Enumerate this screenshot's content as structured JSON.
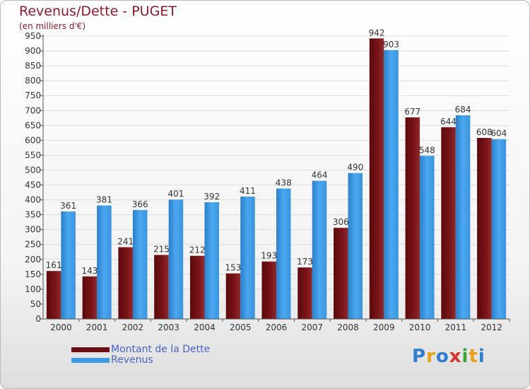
{
  "title": "Revenus/Dette - PUGET",
  "subtitle": "(en milliers d'€)",
  "logo": {
    "letters": [
      "P",
      "r",
      "o",
      "x",
      "i",
      "t",
      "i"
    ],
    "colors": [
      "#2e7fd1",
      "#e8a21a",
      "#2e7fd1",
      "#d8352a",
      "#3aa53a",
      "#e8a21a",
      "#2e7fd1"
    ]
  },
  "colors": {
    "dette": "#7a1418",
    "revenus": "#3d9be6"
  },
  "chart_data": {
    "type": "bar",
    "title": "Revenus/Dette - PUGET",
    "categories": [
      "2000",
      "2001",
      "2002",
      "2003",
      "2004",
      "2005",
      "2006",
      "2007",
      "2008",
      "2009",
      "2010",
      "2011",
      "2012"
    ],
    "series": [
      {
        "name": "Montant de la Dette",
        "values": [
          161,
          143,
          241,
          215,
          212,
          153,
          193,
          173,
          306,
          942,
          677,
          644,
          608
        ]
      },
      {
        "name": "Revenus",
        "values": [
          361,
          381,
          366,
          401,
          392,
          411,
          438,
          464,
          490,
          903,
          548,
          684,
          604
        ]
      }
    ],
    "ylim": [
      0,
      950
    ],
    "yticks": [
      0,
      50,
      100,
      150,
      200,
      250,
      300,
      350,
      400,
      450,
      500,
      550,
      600,
      650,
      700,
      750,
      800,
      850,
      900,
      950
    ],
    "grid": true,
    "legend": "bottom-left"
  }
}
